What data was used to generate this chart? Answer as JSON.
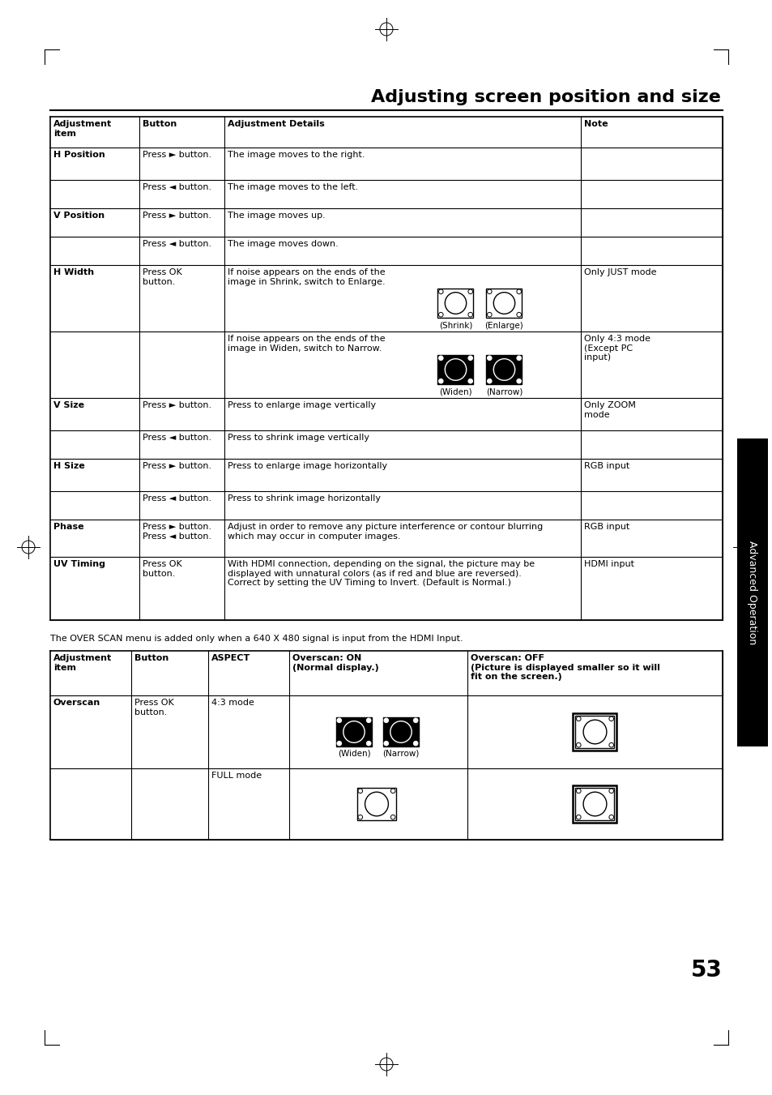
{
  "title": "Adjusting screen position and size",
  "background_color": "#ffffff",
  "text_color": "#000000",
  "page_number": "53",
  "sidebar_text": "Advanced Operation",
  "overscan_note": "The OVER SCAN menu is added only when a 640 X 480 signal is input from the HDMI Input."
}
